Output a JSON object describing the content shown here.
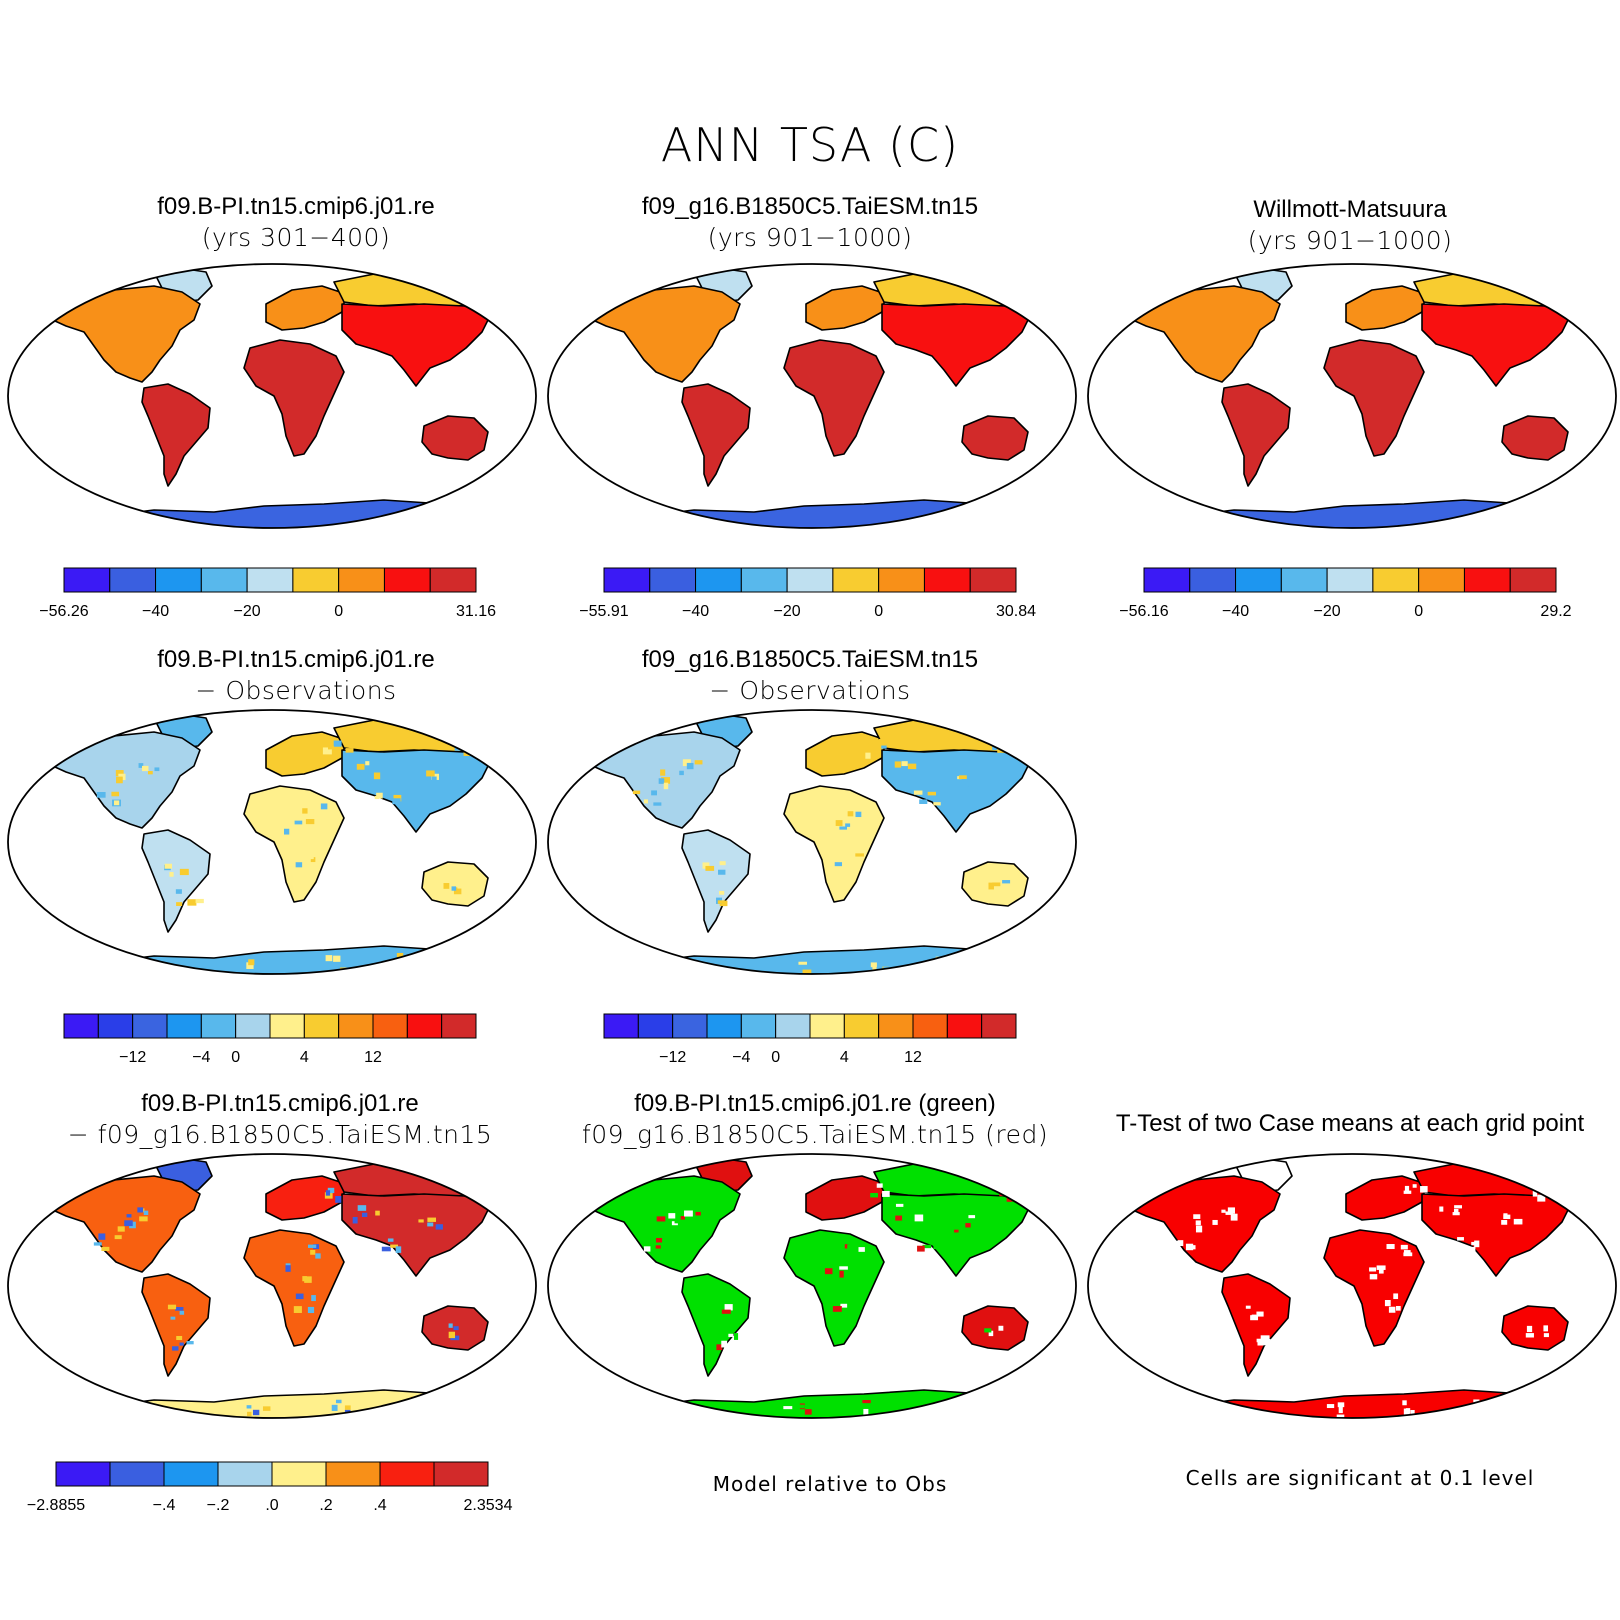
{
  "figure_title": "ANN TSA (C)",
  "panels": {
    "p1": {
      "line1": "f09.B-PI.tn15.cmip6.j01.re",
      "line2": "(yrs 301−400)",
      "type": "absolute"
    },
    "p2": {
      "line1": "f09_g16.B1850C5.TaiESM.tn15",
      "line2": "(yrs 901−1000)",
      "type": "absolute"
    },
    "p3": {
      "line1": "Willmott-Matsuura",
      "line2": "(yrs 901−1000)",
      "type": "absolute"
    },
    "p4": {
      "line1": "f09.B-PI.tn15.cmip6.j01.re",
      "line2": "− Observations",
      "type": "bias"
    },
    "p5": {
      "line1": "f09_g16.B1850C5.TaiESM.tn15",
      "line2": "− Observations",
      "type": "bias"
    },
    "p6": {
      "line1": "f09.B-PI.tn15.cmip6.j01.re",
      "line2": "− f09_g16.B1850C5.TaiESM.tn15",
      "type": "diff"
    },
    "p7": {
      "line1": "f09.B-PI.tn15.cmip6.j01.re (green)",
      "line2": "f09_g16.B1850C5.TaiESM.tn15 (red)",
      "type": "relative",
      "note": "Model relative to Obs"
    },
    "p8": {
      "line1": "T-Test of two Case means at each grid point",
      "line2": "",
      "type": "ttest",
      "note": "Cells are significant at 0.1 level"
    }
  },
  "colorbars": {
    "cb1": {
      "colors": [
        "#3b1af5",
        "#3a5fe0",
        "#1d96f0",
        "#58b8ec",
        "#bfe0f0",
        "#f8cc30",
        "#f89018",
        "#f81010",
        "#d22a2a"
      ],
      "labels": [
        "−56.26",
        "−40",
        "−20",
        "0",
        "31.16"
      ],
      "label_index": [
        0,
        2,
        4,
        6,
        9
      ]
    },
    "cb2": {
      "colors": [
        "#3b1af5",
        "#3a5fe0",
        "#1d96f0",
        "#58b8ec",
        "#bfe0f0",
        "#f8cc30",
        "#f89018",
        "#f81010",
        "#d22a2a"
      ],
      "labels": [
        "−55.91",
        "−40",
        "−20",
        "0",
        "30.84"
      ],
      "label_index": [
        0,
        2,
        4,
        6,
        9
      ]
    },
    "cb3": {
      "colors": [
        "#3b1af5",
        "#3a5fe0",
        "#1d96f0",
        "#58b8ec",
        "#bfe0f0",
        "#f8cc30",
        "#f89018",
        "#f81010",
        "#d22a2a"
      ],
      "labels": [
        "−56.16",
        "−40",
        "−20",
        "0",
        "29.2"
      ],
      "label_index": [
        0,
        2,
        4,
        6,
        9
      ]
    },
    "cb4": {
      "colors": [
        "#3b1af5",
        "#2a3ee8",
        "#3a64e0",
        "#1d96f0",
        "#58b8ec",
        "#a8d4ec",
        "#fff08c",
        "#f8cc30",
        "#f89018",
        "#f86010",
        "#f81010",
        "#d22a2a"
      ],
      "labels": [
        "−12",
        "−4",
        "0",
        "4",
        "12"
      ],
      "label_index": [
        2,
        4,
        5,
        7,
        9
      ]
    },
    "cb5": {
      "colors": [
        "#3b1af5",
        "#2a3ee8",
        "#3a64e0",
        "#1d96f0",
        "#58b8ec",
        "#a8d4ec",
        "#fff08c",
        "#f8cc30",
        "#f89018",
        "#f86010",
        "#f81010",
        "#d22a2a"
      ],
      "labels": [
        "−12",
        "−4",
        "0",
        "4",
        "12"
      ],
      "label_index": [
        2,
        4,
        5,
        7,
        9
      ]
    },
    "cb6": {
      "colors": [
        "#3b1af5",
        "#3a5fe0",
        "#1d96f0",
        "#a8d4ec",
        "#fff08c",
        "#f89018",
        "#f82010",
        "#d22a2a"
      ],
      "labels": [
        "−2.8855",
        "−.4",
        "−.2",
        ".0",
        ".2",
        ".4",
        "2.3534"
      ],
      "label_index": [
        0,
        2,
        3,
        4,
        5,
        6,
        8
      ]
    }
  },
  "fills": {
    "absolute": {
      "na": "#f89018",
      "sa": "#d22a2a",
      "af": "#d22a2a",
      "eu": "#f89018",
      "as": "#f81010",
      "au": "#d22a2a",
      "ant": "#3a64e0",
      "gl": "#bfe0f0",
      "sib": "#f8cc30"
    },
    "bias": {
      "na": "#a8d4ec",
      "sa": "#bfe0f0",
      "af": "#fff08c",
      "eu": "#f8cc30",
      "as": "#58b8ec",
      "au": "#fff08c",
      "ant": "#58b8ec",
      "gl": "#58b8ec",
      "sib": "#f8cc30"
    },
    "diff": {
      "na": "#f86010",
      "sa": "#f86010",
      "af": "#f86010",
      "eu": "#f82010",
      "as": "#d22a2a",
      "au": "#d22a2a",
      "ant": "#fff08c",
      "gl": "#3a5fe0",
      "sib": "#d22a2a"
    },
    "relative": {
      "na": "#00e000",
      "sa": "#00e000",
      "af": "#00e000",
      "eu": "#e01010",
      "as": "#00e000",
      "au": "#e01010",
      "ant": "#00e000",
      "gl": "#e01010",
      "sib": "#00e000"
    },
    "ttest": {
      "na": "#f80000",
      "sa": "#f80000",
      "af": "#f80000",
      "eu": "#f80000",
      "as": "#f80000",
      "au": "#f80000",
      "ant": "#f80000",
      "gl": "#ffffff",
      "sib": "#f80000"
    }
  }
}
